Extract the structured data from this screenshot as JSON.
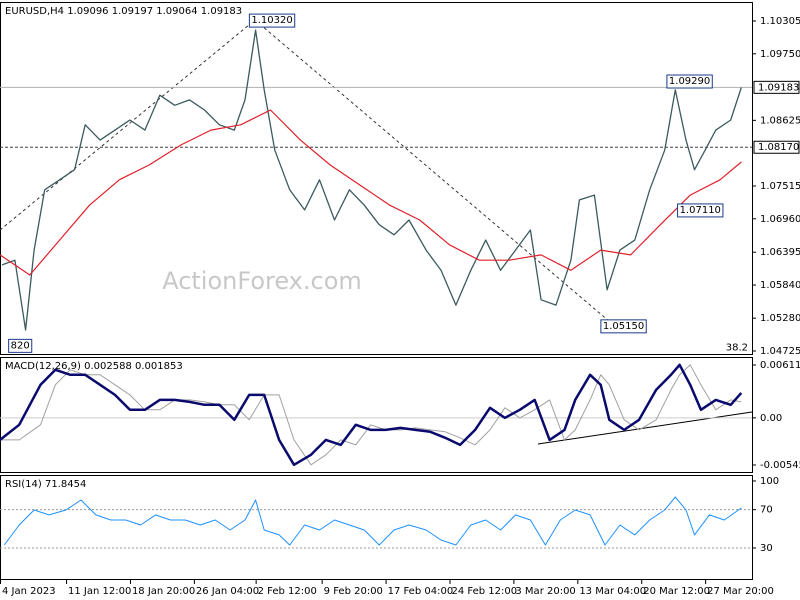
{
  "chart_data": [
    {
      "type": "line",
      "title": "EURUSD,H4  1.09096 1.09197 1.09064 1.09183",
      "watermark": "ActionForex.com",
      "xlim": [
        0,
        353
      ],
      "ylim": [
        1.04674,
        1.10609
      ],
      "yticks": [
        1.10305,
        {
          "value": 1.0975,
          "label": "1.09750"
        },
        1.08625,
        1.07515,
        {
          "value": 1.0696,
          "label": "1.06960"
        },
        1.06395,
        {
          "value": 1.0584,
          "label": "1.05840"
        },
        {
          "value": 1.0528,
          "label": "1.05280"
        },
        1.04725
      ],
      "hlines": [
        {
          "value": 1.09183,
          "label": "1.09183",
          "style": "solid",
          "color": "#b0b0b0"
        },
        {
          "value": 1.0817,
          "label": "1.08170",
          "style": "dashed",
          "color": "#404040"
        }
      ],
      "annotations": [
        {
          "text": "1.10320",
          "x": 118,
          "y": 1.1032
        },
        {
          "text": "1.09290",
          "x": 314,
          "y": 1.0929
        },
        {
          "text": "1.07110",
          "x": 319,
          "y": 1.0711
        },
        {
          "text": "1.05150",
          "x": 283,
          "y": 1.0515
        },
        {
          "text": "820",
          "x": 5,
          "y": 1.0482
        },
        {
          "text": "38.2",
          "x": 353,
          "y": 1.0478
        }
      ],
      "series": [
        {
          "color": "#3c5a5e",
          "width": 1.3,
          "x": [
            1,
            7,
            12,
            16,
            21,
            28,
            35,
            40,
            47,
            54,
            61,
            68,
            75,
            82,
            89,
            96,
            103,
            110,
            115,
            120,
            124,
            129,
            136,
            143,
            150,
            157,
            164,
            171,
            178,
            185,
            192,
            200,
            207,
            214,
            221,
            228,
            235,
            242,
            249,
            254,
            261,
            268,
            272,
            279,
            285,
            291,
            298,
            305,
            312,
            317,
            322,
            326,
            331,
            336,
            343,
            348
          ],
          "values": [
            1.0618,
            1.0626,
            1.0508,
            1.0643,
            1.0745,
            1.0762,
            1.0779,
            1.0855,
            1.0829,
            1.0846,
            1.0863,
            1.0846,
            1.0905,
            1.0888,
            1.0897,
            1.088,
            1.0855,
            1.0846,
            1.0897,
            1.1015,
            1.0914,
            1.0812,
            1.0745,
            1.0711,
            1.0762,
            1.0694,
            1.0745,
            1.0719,
            1.0686,
            1.0669,
            1.0694,
            1.0643,
            1.0609,
            1.055,
            1.0609,
            1.066,
            1.0609,
            1.0643,
            1.0677,
            1.0559,
            1.055,
            1.0626,
            1.0728,
            1.0736,
            1.0576,
            1.0643,
            1.066,
            1.0745,
            1.0812,
            1.0914,
            1.0829,
            1.0779,
            1.0812,
            1.0846,
            1.0863,
            1.0918
          ]
        },
        {
          "color": "#e0202a",
          "width": 1.2,
          "x": [
            0,
            14,
            28,
            42,
            56,
            70,
            85,
            99,
            113,
            127,
            141,
            155,
            169,
            183,
            197,
            211,
            225,
            239,
            254,
            268,
            282,
            296,
            310,
            324,
            338,
            348
          ],
          "values": [
            1.0635,
            1.0601,
            1.066,
            1.0719,
            1.0762,
            1.0787,
            1.0821,
            1.0846,
            1.0855,
            1.088,
            1.0829,
            1.0787,
            1.0753,
            1.0719,
            1.0694,
            1.0652,
            1.0626,
            1.0626,
            1.0635,
            1.0609,
            1.0643,
            1.0635,
            1.0686,
            1.0736,
            1.0762,
            1.0792
          ]
        }
      ]
    },
    {
      "type": "line",
      "title": "MACD(12,26,9) 0.002588 0.001853",
      "xlim": [
        0,
        353
      ],
      "ylim": [
        -0.006268,
        0.006928
      ],
      "yticks": [
        0.006118,
        {
          "value": 0,
          "label": "0.00"
        },
        -0.005458
      ],
      "series": [
        {
          "color": "#a0a0a0",
          "width": 1,
          "x": [
            0,
            9,
            19,
            26,
            33,
            40,
            47,
            54,
            61,
            68,
            75,
            82,
            89,
            96,
            103,
            110,
            117,
            124,
            131,
            138,
            146,
            153,
            160,
            167,
            174,
            181,
            188,
            195,
            202,
            209,
            216,
            223,
            230,
            237,
            244,
            251,
            258,
            265,
            270,
            277,
            282,
            286,
            293,
            300,
            308,
            315,
            319,
            324,
            329,
            336,
            343,
            348
          ],
          "values": [
            -0.00255,
            -0.00255,
            -0.00081,
            0.00382,
            0.00556,
            0.00498,
            0.00498,
            0.00382,
            0.00266,
            0.00093,
            0.00093,
            0.00208,
            0.00208,
            0.00185,
            0.00151,
            0.00151,
            -0.00023,
            0.00266,
            0.00266,
            -0.00255,
            -0.00544,
            -0.00428,
            -0.00255,
            -0.00313,
            -0.00081,
            -0.00139,
            -0.00139,
            -0.00116,
            -0.00139,
            -0.00162,
            -0.00231,
            -0.00313,
            -0.00139,
            0.00116,
            0,
            0.00093,
            0.00208,
            -0.00255,
            -0.00139,
            0.00208,
            0.00498,
            0.00382,
            -0.00023,
            -0.00139,
            -0.00023,
            0.00324,
            0.00498,
            0.00614,
            0.00382,
            0.00093,
            0.00208,
            0.00185
          ]
        },
        {
          "color": "#0a0a6e",
          "width": 2.5,
          "x": [
            0,
            9,
            19,
            26,
            33,
            40,
            47,
            54,
            61,
            68,
            75,
            82,
            89,
            96,
            103,
            110,
            117,
            124,
            131,
            138,
            146,
            153,
            160,
            167,
            174,
            181,
            188,
            195,
            202,
            209,
            216,
            223,
            230,
            237,
            244,
            251,
            258,
            265,
            270,
            277,
            282,
            286,
            293,
            300,
            308,
            315,
            319,
            324,
            329,
            336,
            343,
            348
          ],
          "values": [
            -0.00255,
            -0.00081,
            0.00382,
            0.00556,
            0.00498,
            0.00498,
            0.00382,
            0.00266,
            0.00093,
            0.00093,
            0.00208,
            0.00208,
            0.00185,
            0.00151,
            0.00151,
            -0.00023,
            0.00266,
            0.00266,
            -0.00255,
            -0.00544,
            -0.00428,
            -0.00255,
            -0.00313,
            -0.00081,
            -0.00139,
            -0.00139,
            -0.00116,
            -0.00139,
            -0.00162,
            -0.00231,
            -0.00313,
            -0.00139,
            0.00116,
            0,
            0.00093,
            0.00208,
            -0.00255,
            -0.00139,
            0.00208,
            0.00498,
            0.00382,
            -0.00023,
            -0.00139,
            -0.00023,
            0.00324,
            0.00498,
            0.00614,
            0.00382,
            0.00093,
            0.00208,
            0.00151,
            0.00289
          ]
        }
      ]
    },
    {
      "type": "line",
      "title": "RSI(14) 71.8454",
      "xlim": [
        0,
        353
      ],
      "ylim": [
        -1.4,
        105.2
      ],
      "yticks": [
        100,
        70,
        30
      ],
      "levels": [
        70,
        30
      ],
      "xticks": [
        {
          "value": 0,
          "label": "4 Jan 2023"
        },
        {
          "value": 31,
          "label": "11 Jan 12:00"
        },
        {
          "value": 61,
          "label": "18 Jan 20:00"
        },
        {
          "value": 91,
          "label": "26 Jan 04:00"
        },
        {
          "value": 120,
          "label": "2 Feb 12:00"
        },
        {
          "value": 151,
          "label": "9 Feb 20:00"
        },
        {
          "value": 181,
          "label": "17 Feb 04:00"
        },
        {
          "value": 211,
          "label": "24 Feb 12:00"
        },
        {
          "value": 241,
          "label": "3 Mar 20:00"
        },
        {
          "value": 271,
          "label": "13 Mar 04:00"
        },
        {
          "value": 301,
          "label": "20 Mar 12:00"
        },
        {
          "value": 331,
          "label": "27 Mar 20:00"
        }
      ],
      "series": [
        {
          "color": "#1e90ff",
          "width": 1,
          "x": [
            2,
            9,
            16,
            23,
            31,
            38,
            45,
            52,
            59,
            66,
            73,
            80,
            87,
            94,
            101,
            108,
            115,
            120,
            124,
            131,
            136,
            143,
            150,
            157,
            164,
            171,
            178,
            185,
            192,
            200,
            207,
            214,
            221,
            228,
            235,
            242,
            249,
            256,
            263,
            270,
            277,
            284,
            291,
            298,
            305,
            312,
            317,
            322,
            326,
            333,
            340,
            348
          ],
          "values": [
            33.1,
            54,
            69.7,
            64.5,
            69.7,
            80.1,
            64.5,
            59.2,
            59.2,
            54,
            64.5,
            59.2,
            59.2,
            54,
            59.2,
            48.8,
            59.2,
            80.1,
            48.8,
            43.6,
            33.1,
            54,
            48.8,
            59.2,
            54,
            48.8,
            33.1,
            48.8,
            54,
            48.8,
            38.3,
            33.1,
            54,
            59.2,
            48.8,
            64.5,
            59.2,
            33.1,
            59.2,
            69.7,
            64.5,
            33.1,
            54,
            43.6,
            59.2,
            69.7,
            83.3,
            69.7,
            43.6,
            64.5,
            59.2,
            71.8
          ]
        }
      ]
    }
  ]
}
